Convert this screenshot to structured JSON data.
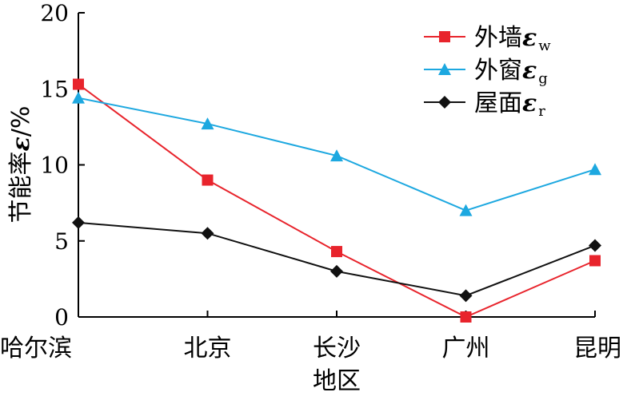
{
  "chart_data": {
    "type": "line",
    "categories": [
      "哈尔滨",
      "北京",
      "长沙",
      "广州",
      "昆明"
    ],
    "xlabel": "地区",
    "ylabel": "节能率ε/%",
    "ylabel_parts": {
      "main": "节能率",
      "symbol": "ε",
      "unit": "/%"
    },
    "ylim": [
      0,
      20
    ],
    "yticks": [
      "0",
      "5",
      "10",
      "15",
      "20"
    ],
    "grid": false,
    "legend_position": "top-right",
    "series": [
      {
        "name": "外墙εw",
        "label": "外墙",
        "symbol": "ε",
        "subscript": "w",
        "color": "#e8242c",
        "marker": "square",
        "values": [
          15.3,
          9.0,
          4.3,
          0.0,
          3.7
        ]
      },
      {
        "name": "外窗εg",
        "label": "外窗",
        "symbol": "ε",
        "subscript": "g",
        "color": "#1da8e0",
        "marker": "triangle",
        "values": [
          14.4,
          12.7,
          10.6,
          7.0,
          9.7
        ]
      },
      {
        "name": "屋面εr",
        "label": "屋面",
        "symbol": "ε",
        "subscript": "r",
        "color": "#111111",
        "marker": "diamond",
        "values": [
          6.2,
          5.5,
          3.0,
          1.4,
          4.7
        ]
      }
    ]
  }
}
